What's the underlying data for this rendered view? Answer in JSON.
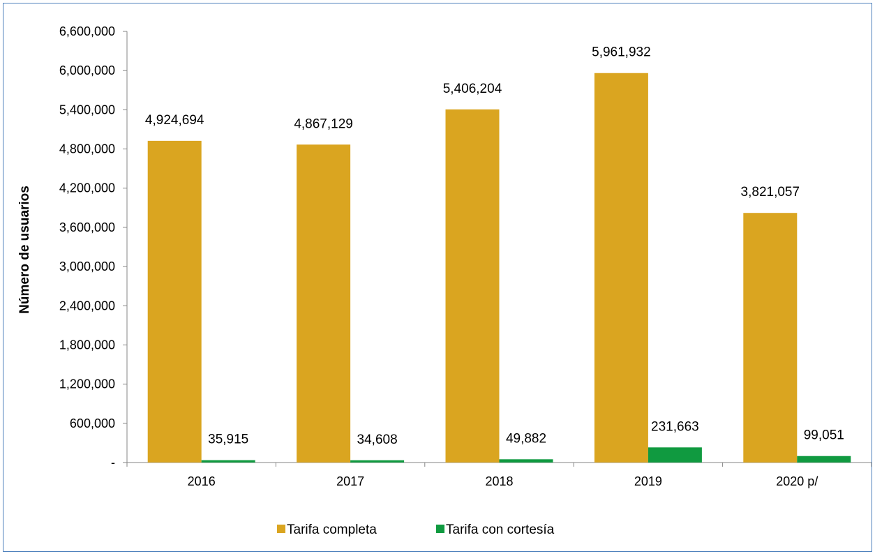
{
  "chart_data": {
    "type": "bar",
    "categories": [
      "2016",
      "2017",
      "2018",
      "2019",
      "2020 p/"
    ],
    "series": [
      {
        "name": "Tarifa completa",
        "color": "#daa520",
        "values": [
          4924694,
          4867129,
          5406204,
          5961932,
          3821057
        ],
        "labels": [
          "4,924,694",
          "4,867,129",
          "5,406,204",
          "5,961,932",
          "3,821,057"
        ]
      },
      {
        "name": "Tarifa con cortesía",
        "color": "#109a40",
        "values": [
          35915,
          34608,
          49882,
          231663,
          99051
        ],
        "labels": [
          "35,915",
          "34,608",
          "49,882",
          "231,663",
          "99,051"
        ]
      }
    ],
    "ylabel": "Número de usuarios",
    "ylim": [
      0,
      6600000
    ],
    "yticks": [
      {
        "value": 0,
        "label": "-"
      },
      {
        "value": 600000,
        "label": "600,000"
      },
      {
        "value": 1200000,
        "label": "1,200,000"
      },
      {
        "value": 1800000,
        "label": "1,800,000"
      },
      {
        "value": 2400000,
        "label": "2,400,000"
      },
      {
        "value": 3000000,
        "label": "3,000,000"
      },
      {
        "value": 3600000,
        "label": "3,600,000"
      },
      {
        "value": 4200000,
        "label": "4,200,000"
      },
      {
        "value": 4800000,
        "label": "4,800,000"
      },
      {
        "value": 5400000,
        "label": "5,400,000"
      },
      {
        "value": 6000000,
        "label": "6,000,000"
      },
      {
        "value": 6600000,
        "label": "6,600,000"
      }
    ],
    "grid": false,
    "legend_position": "bottom"
  }
}
